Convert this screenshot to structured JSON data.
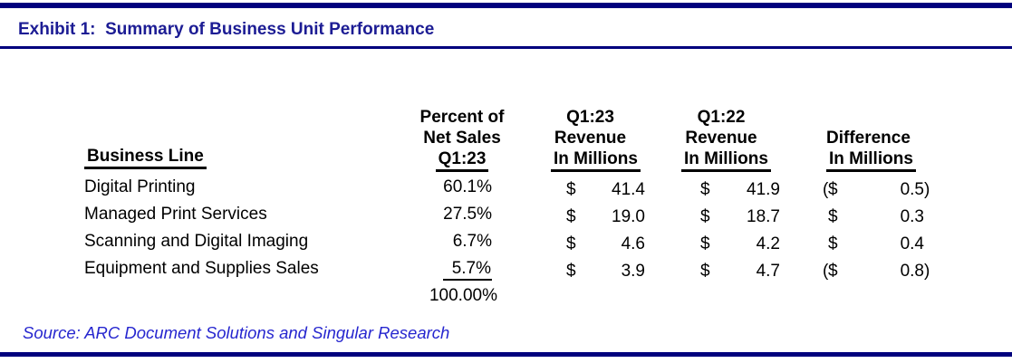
{
  "exhibit": {
    "title": "Exhibit 1:  Summary of Business Unit Performance",
    "source": "Source: ARC Document Solutions and Singular Research"
  },
  "table": {
    "header": {
      "business_line": "Business Line",
      "percent_l1": "Percent of",
      "percent_l2": "Net Sales",
      "percent_l3": "Q1:23",
      "q123_l1": "Q1:23",
      "q123_l2": "Revenue",
      "q123_l3": "In Millions",
      "q122_l1": "Q1:22",
      "q122_l2": "Revenue",
      "q122_l3": "In Millions",
      "diff_l1": "Difference",
      "diff_l2": "In Millions"
    },
    "rows": [
      {
        "name": "Digital Printing",
        "percent": "60.1%",
        "q123": {
          "cur": "$",
          "val": "41.4"
        },
        "q122": {
          "cur": "$",
          "val": "41.9"
        },
        "diff": {
          "open": "(",
          "cur": "$",
          "val": "0.5",
          "close": ")"
        }
      },
      {
        "name": "Managed Print Services",
        "percent": "27.5%",
        "q123": {
          "cur": "$",
          "val": "19.0"
        },
        "q122": {
          "cur": "$",
          "val": "18.7"
        },
        "diff": {
          "open": "",
          "cur": "$",
          "val": "0.3",
          "close": ""
        }
      },
      {
        "name": "Scanning and Digital Imaging",
        "percent": "6.7%",
        "q123": {
          "cur": "$",
          "val": "4.6"
        },
        "q122": {
          "cur": "$",
          "val": "4.2"
        },
        "diff": {
          "open": "",
          "cur": "$",
          "val": "0.4",
          "close": ""
        }
      },
      {
        "name": "Equipment and Supplies Sales",
        "percent": "5.7%",
        "q123": {
          "cur": "$",
          "val": "3.9"
        },
        "q122": {
          "cur": "$",
          "val": "4.7"
        },
        "diff": {
          "open": "(",
          "cur": "$",
          "val": "0.8",
          "close": ")"
        }
      }
    ],
    "total_percent": "100.00%"
  },
  "colors": {
    "navy_line": "#00007d",
    "title_text": "#1c1c94",
    "source_text": "#2626cf",
    "body_text": "#000000"
  }
}
